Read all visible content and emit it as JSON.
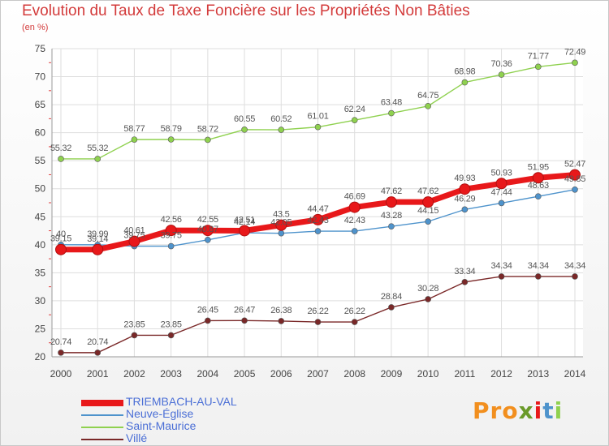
{
  "title": "Evolution du Taux de Taxe Foncière sur les Propriétés Non Bâties",
  "subtitle": "(en %)",
  "logo_text": "Proxiti",
  "chart_data": {
    "type": "line",
    "title": "Evolution du Taux de Taxe Foncière sur les Propriétés Non Bâties",
    "ylabel": "(en %)",
    "xlabel": "",
    "ylim": [
      20,
      75
    ],
    "yticks": [
      "20",
      "25",
      "30",
      "35",
      "40",
      "45",
      "50",
      "55",
      "60",
      "65",
      "70",
      "75"
    ],
    "x": [
      "2000",
      "2001",
      "2002",
      "2003",
      "2004",
      "2005",
      "2006",
      "2007",
      "2008",
      "2009",
      "2010",
      "2011",
      "2012",
      "2013",
      "2014"
    ],
    "grid": true,
    "legend_position": "bottom-left",
    "series": [
      {
        "name": "TRIEMBACH-AU-VAL",
        "color": "#e8181a",
        "values": [
          39.15,
          39.14,
          40.61,
          42.56,
          42.55,
          42.51,
          43.5,
          44.47,
          46.69,
          47.62,
          47.62,
          49.93,
          50.93,
          51.95,
          52.47
        ],
        "labels": [
          "39.15",
          "39.14",
          "40.61",
          "42.56",
          "42.55",
          "42.51",
          "43.5",
          "44.47",
          "46.69",
          "47.62",
          "47.62",
          "49.93",
          "50.93",
          "51.95",
          "52.47"
        ]
      },
      {
        "name": "Neuve-Église",
        "color": "#4e93cc",
        "values": [
          40.0,
          39.99,
          39.75,
          39.75,
          40.87,
          42.14,
          42.05,
          42.43,
          42.43,
          43.28,
          44.15,
          46.29,
          47.44,
          48.63,
          49.85
        ],
        "labels": [
          "40",
          "39.99",
          "39.75",
          "39.75",
          "40.87",
          "42.14",
          "42.05",
          "42.43",
          "42.43",
          "43.28",
          "44.15",
          "46.29",
          "47.44",
          "48.63",
          "49.85"
        ]
      },
      {
        "name": "Saint-Maurice",
        "color": "#8fd14f",
        "values": [
          55.32,
          55.32,
          58.77,
          58.79,
          58.72,
          60.55,
          60.52,
          61.01,
          62.24,
          63.48,
          64.75,
          68.98,
          70.36,
          71.77,
          72.49
        ],
        "labels": [
          "55.32",
          "55.32",
          "58.77",
          "58.79",
          "58.72",
          "60.55",
          "60.52",
          "61.01",
          "62.24",
          "63.48",
          "64.75",
          "68.98",
          "70.36",
          "71.77",
          "72.49"
        ]
      },
      {
        "name": "Villé",
        "color": "#7a2828",
        "values": [
          20.74,
          20.74,
          23.85,
          23.85,
          26.45,
          26.47,
          26.38,
          26.22,
          26.22,
          28.84,
          30.28,
          33.34,
          34.34,
          34.34,
          34.34
        ],
        "labels": [
          "20.74",
          "20.74",
          "23.85",
          "23.85",
          "26.45",
          "26.47",
          "26.38",
          "26.22",
          "26.22",
          "28.84",
          "30.28",
          "33.34",
          "34.34",
          "34.34",
          "34.34"
        ]
      }
    ]
  }
}
